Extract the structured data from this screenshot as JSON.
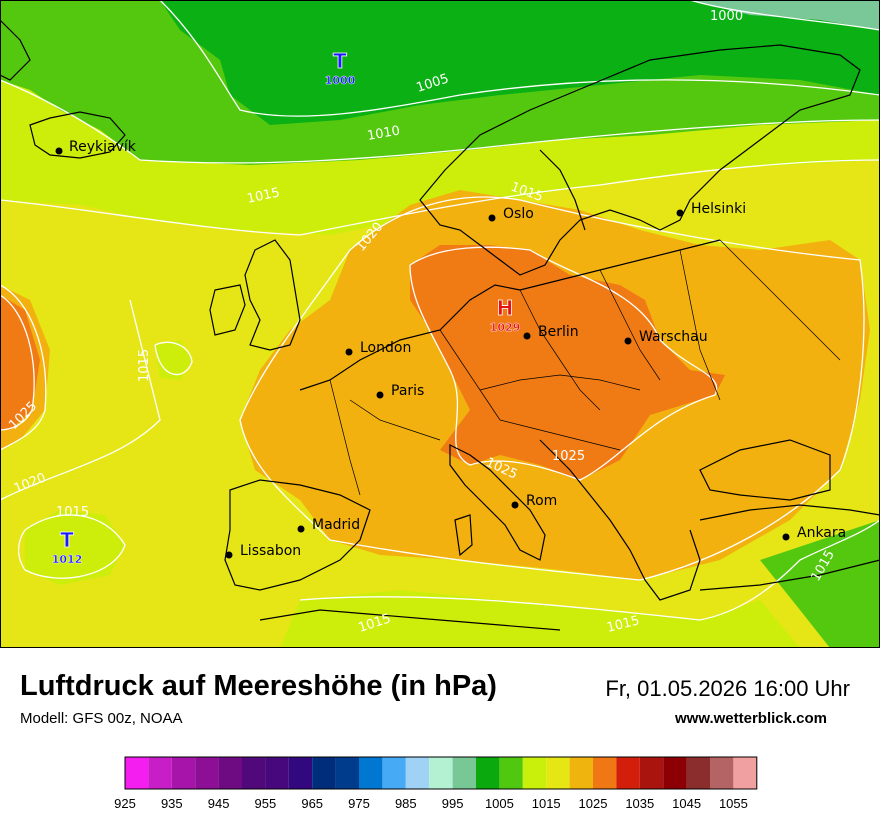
{
  "title": "Luftdruck auf Meereshöhe (in hPa)",
  "model": "Modell: GFS 00z, NOAA",
  "datetime": "Fr, 01.05.2026 16:00 Uhr",
  "website": "www.wetterblick.com",
  "colors": {
    "ocean_base": "#e8e61a",
    "low_label": "#1a1aff",
    "high_label": "#e81010",
    "coast": "#000000",
    "isobar": "#ffffff"
  },
  "pressure_centers": [
    {
      "type": "low",
      "letter": "T",
      "value": "1000"
    },
    {
      "type": "high",
      "letter": "H",
      "value": "1029"
    },
    {
      "type": "low",
      "letter": "T",
      "value": "1012"
    }
  ],
  "cities": [
    {
      "name": "Reykjavík"
    },
    {
      "name": "Oslo"
    },
    {
      "name": "Helsinki"
    },
    {
      "name": "London"
    },
    {
      "name": "Berlin"
    },
    {
      "name": "Warschau"
    },
    {
      "name": "Paris"
    },
    {
      "name": "Madrid"
    },
    {
      "name": "Lissabon"
    },
    {
      "name": "Rom"
    },
    {
      "name": "Ankara"
    }
  ],
  "isobar_labels": [
    "1000",
    "1005",
    "1010",
    "1015",
    "1015",
    "1015",
    "1015",
    "1015",
    "1015",
    "1015",
    "1020",
    "1020",
    "1025",
    "1025",
    "1025"
  ],
  "legend": {
    "colors": [
      "#f51ef0",
      "#c81ec8",
      "#a614aa",
      "#8c0f96",
      "#6e0a82",
      "#50087a",
      "#46087c",
      "#32087e",
      "#002c7c",
      "#003c8c",
      "#0078d2",
      "#46aaf5",
      "#a0d2f5",
      "#b4f0d2",
      "#78c896",
      "#0aaa0f",
      "#50c80f",
      "#c8f00a",
      "#e6e614",
      "#f0b40f",
      "#f07814",
      "#d21e0a",
      "#aa140f",
      "#8c0005",
      "#8c2d2d",
      "#b46464",
      "#f0a0a0"
    ],
    "labels": [
      "925",
      "935",
      "945",
      "955",
      "965",
      "975",
      "985",
      "995",
      "1005",
      "1015",
      "1025",
      "1035",
      "1045",
      "1055"
    ]
  }
}
